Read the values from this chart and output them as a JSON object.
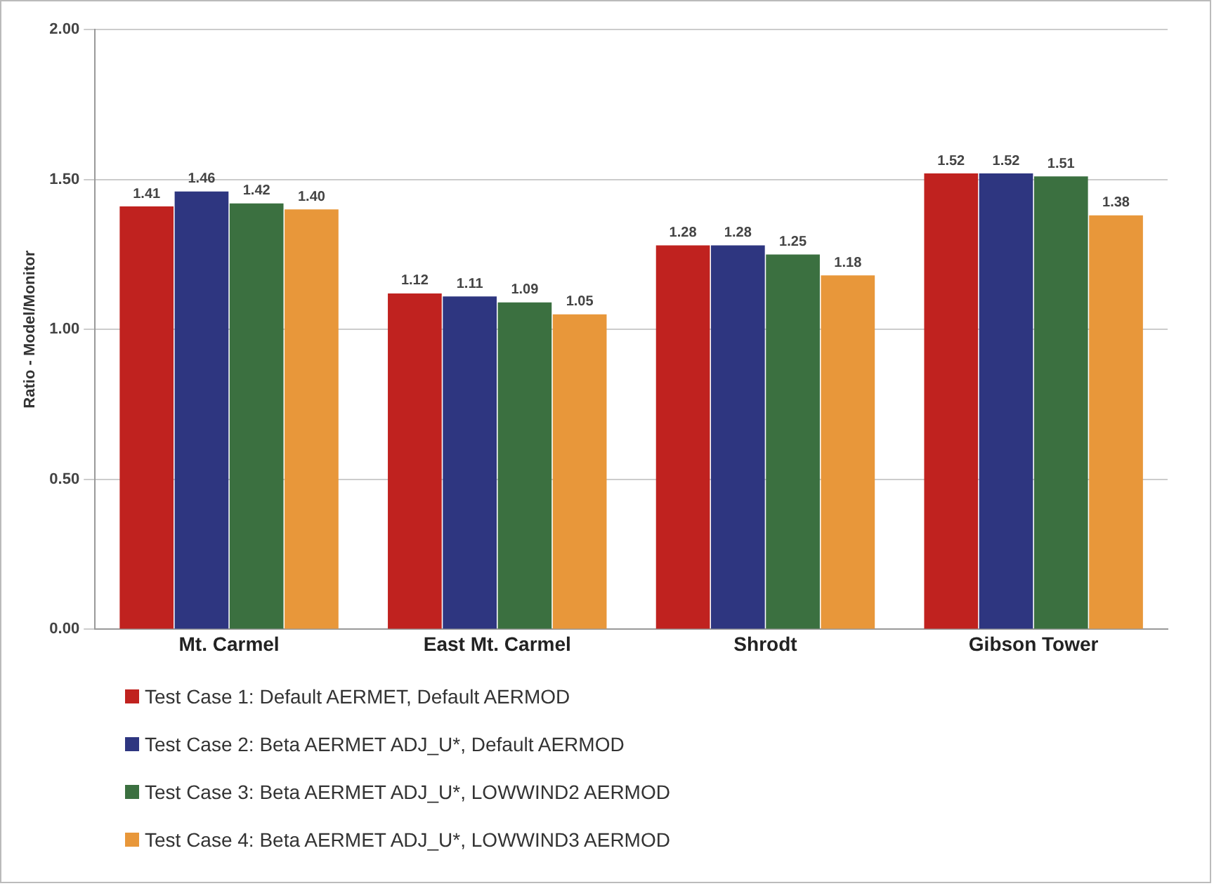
{
  "chart_data": {
    "type": "bar",
    "ylabel": "Ratio - Model/Monitor",
    "categories": [
      "Mt. Carmel",
      "East Mt. Carmel",
      "Shrodt",
      "Gibson Tower"
    ],
    "series": [
      {
        "name": "Test Case 1: Default AERMET, Default AERMOD",
        "color": "#c0221f",
        "values": [
          1.41,
          1.12,
          1.28,
          1.52
        ],
        "value_labels": [
          "1.41",
          "1.12",
          "1.28",
          "1.52"
        ]
      },
      {
        "name": "Test Case 2: Beta AERMET ADJ_U*, Default AERMOD",
        "color": "#2e3680",
        "values": [
          1.46,
          1.11,
          1.28,
          1.52
        ],
        "value_labels": [
          "1.46",
          "1.11",
          "1.28",
          "1.52"
        ]
      },
      {
        "name": "Test Case 3: Beta AERMET ADJ_U*, LOWWIND2 AERMOD",
        "color": "#3b7040",
        "values": [
          1.42,
          1.09,
          1.25,
          1.51
        ],
        "value_labels": [
          "1.42",
          "1.09",
          "1.25",
          "1.51"
        ]
      },
      {
        "name": "Test Case 4: Beta AERMET ADJ_U*, LOWWIND3 AERMOD",
        "color": "#e8973a",
        "values": [
          1.4,
          1.05,
          1.18,
          1.38
        ],
        "value_labels": [
          "1.40",
          "1.05",
          "1.18",
          "1.38"
        ]
      }
    ],
    "ylim": [
      0,
      2
    ],
    "yticks": [
      {
        "value": 0,
        "label": "0.00"
      },
      {
        "value": 0.5,
        "label": "0.50"
      },
      {
        "value": 1,
        "label": "1.00"
      },
      {
        "value": 1.5,
        "label": "1.50"
      },
      {
        "value": 2,
        "label": "2.00"
      }
    ],
    "grid": "y",
    "legend": "bottom"
  }
}
